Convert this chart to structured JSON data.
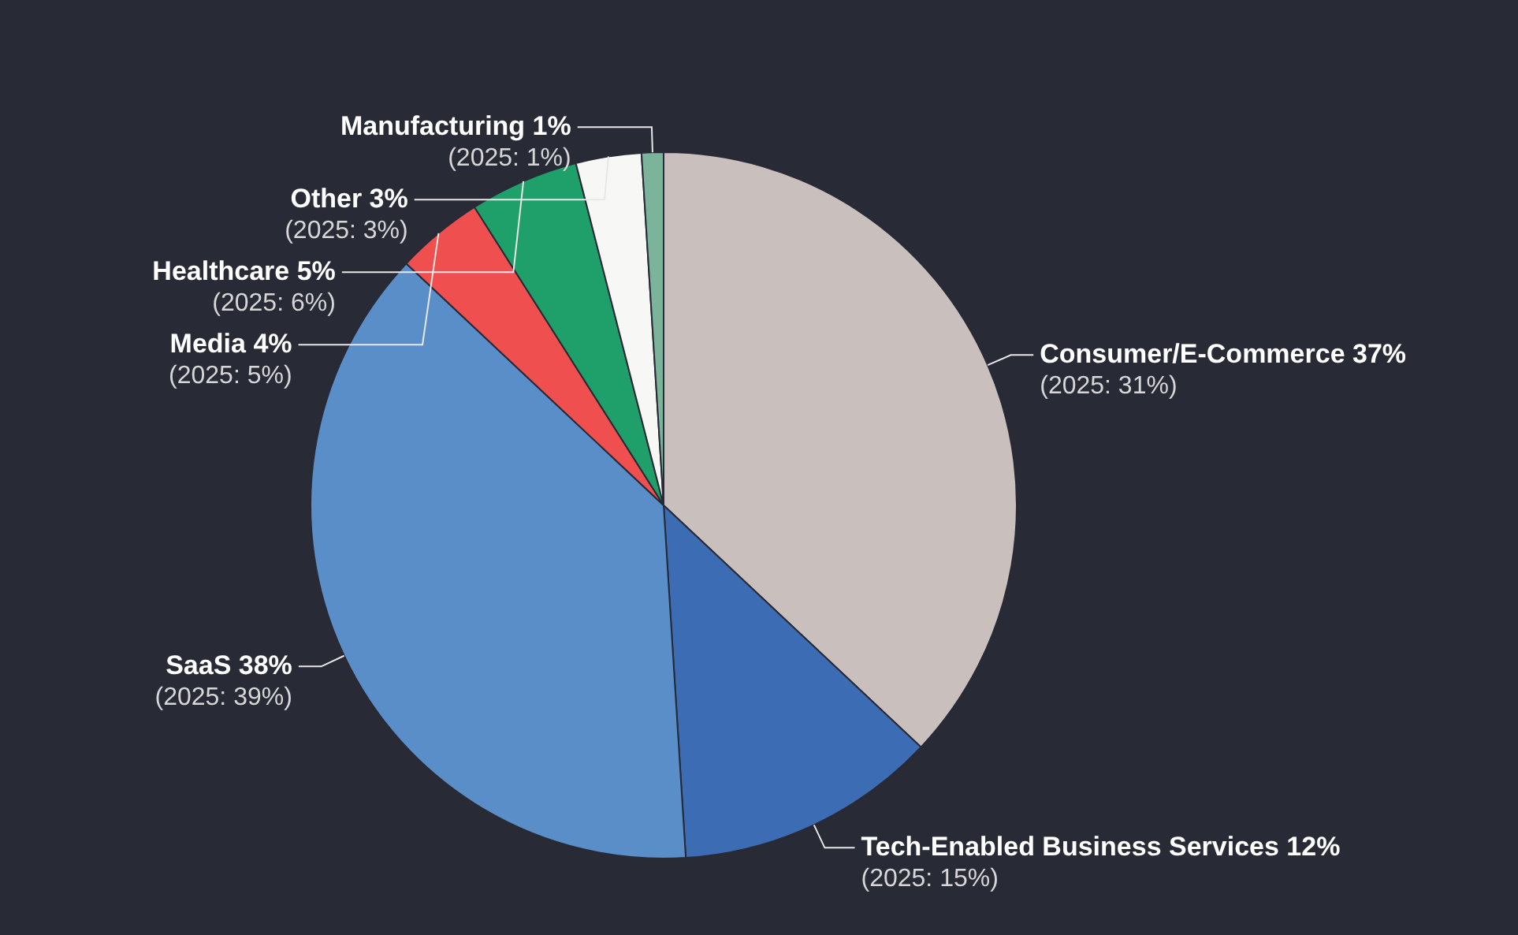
{
  "chart_data": {
    "type": "pie",
    "categories": [
      "Consumer/E-Commerce",
      "Tech-Enabled Business Services",
      "SaaS",
      "Media",
      "Healthcare",
      "Other",
      "Manufacturing"
    ],
    "values": [
      37,
      12,
      38,
      4,
      5,
      3,
      1
    ],
    "colors": [
      "#c9c0bd",
      "#3b6cb4",
      "#5a8ec9",
      "#ef4f4f",
      "#1fa06a",
      "#f7f8f5",
      "#7cb39b"
    ],
    "value_labels": [
      "37%",
      "12%",
      "38%",
      "4%",
      "5%",
      "3%",
      "1%"
    ],
    "annotations": [
      "(2025: 31%)",
      "(2025: 15%)",
      "(2025: 39%)",
      "(2025: 5%)",
      "(2025: 6%)",
      "(2025: 3%)",
      "(2025: 1%)"
    ]
  }
}
